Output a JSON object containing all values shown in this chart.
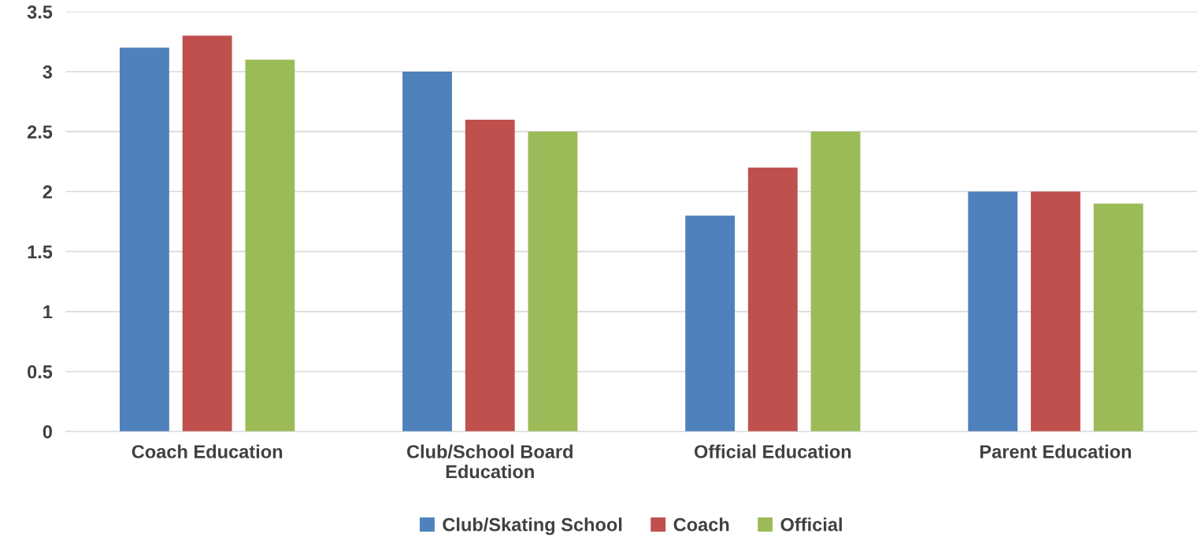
{
  "chart_data": {
    "type": "bar",
    "categories": [
      "Coach Education",
      "Club/School Board Education",
      "Official Education",
      "Parent Education"
    ],
    "series": [
      {
        "name": "Club/Skating School",
        "color": "#4f81bd",
        "values": [
          3.2,
          3.0,
          1.8,
          2.0
        ]
      },
      {
        "name": "Coach",
        "color": "#c0504d",
        "values": [
          3.3,
          2.6,
          2.2,
          2.0
        ]
      },
      {
        "name": "Official",
        "color": "#9bbb59",
        "values": [
          3.1,
          2.5,
          2.5,
          1.9
        ]
      }
    ],
    "ylim": [
      0,
      3.5
    ],
    "yticks": [
      0,
      0.5,
      1,
      1.5,
      2,
      2.5,
      3,
      3.5
    ],
    "grid": "y",
    "legend": "bottom"
  }
}
